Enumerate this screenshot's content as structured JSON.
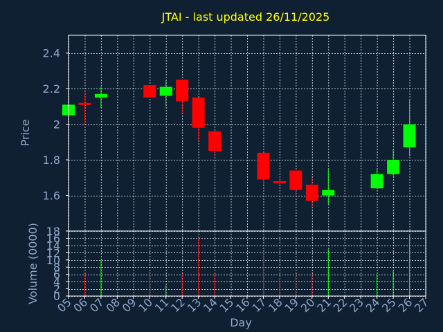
{
  "chart_data": {
    "type": "candlestick",
    "title": "JTAI - last updated 26/11/2025",
    "xlabel": "Day",
    "price_panel": {
      "ylabel": "Price",
      "ylim": [
        1.4,
        2.5
      ],
      "yticks": [
        1.6,
        1.8,
        2,
        2.2,
        2.4
      ],
      "ytick_labels": [
        "1.6",
        "1.8",
        "2",
        "2.2",
        "2.4"
      ]
    },
    "volume_panel": {
      "ylabel": "Volume (0000)",
      "ylim": [
        0,
        18
      ],
      "yticks": [
        0,
        2,
        4,
        6,
        8,
        10,
        12,
        14,
        16,
        18
      ],
      "ytick_labels": [
        "0",
        "2",
        "4",
        "6",
        "8",
        "10",
        "12",
        "14",
        "16",
        "18"
      ]
    },
    "x_ticks": [
      "05",
      "06",
      "07",
      "08",
      "09",
      "10",
      "11",
      "12",
      "13",
      "14",
      "15",
      "16",
      "17",
      "18",
      "19",
      "20",
      "21",
      "22",
      "23",
      "24",
      "25",
      "26",
      "27"
    ],
    "xlim": [
      5,
      27
    ],
    "grid": true,
    "colors": {
      "up": "#00ff00",
      "down": "#ff0000",
      "background": "#0f2033",
      "title": "#ffff00",
      "text": "#8fa8c8"
    },
    "candles": [
      {
        "day": 5,
        "open": 2.05,
        "high": 2.11,
        "low": 2.05,
        "close": 2.11,
        "volume": 3
      },
      {
        "day": 6,
        "open": 2.12,
        "high": 2.17,
        "low": 2.0,
        "close": 2.11,
        "volume": 6
      },
      {
        "day": 7,
        "open": 2.15,
        "high": 2.21,
        "low": 2.09,
        "close": 2.17,
        "volume": 10
      },
      {
        "day": 10,
        "open": 2.22,
        "high": 2.22,
        "low": 2.15,
        "close": 2.15,
        "volume": 7
      },
      {
        "day": 11,
        "open": 2.16,
        "high": 2.25,
        "low": 2.1,
        "close": 2.21,
        "volume": 3
      },
      {
        "day": 12,
        "open": 2.25,
        "high": 2.25,
        "low": 2.06,
        "close": 2.13,
        "volume": 6
      },
      {
        "day": 13,
        "open": 2.15,
        "high": 2.15,
        "low": 1.91,
        "close": 1.98,
        "volume": 16
      },
      {
        "day": 14,
        "open": 1.96,
        "high": 1.96,
        "low": 1.82,
        "close": 1.85,
        "volume": 6
      },
      {
        "day": 17,
        "open": 1.84,
        "high": 1.84,
        "low": 1.66,
        "close": 1.69,
        "volume": 12
      },
      {
        "day": 18,
        "open": 1.68,
        "high": 1.68,
        "low": 1.66,
        "close": 1.67,
        "volume": 5
      },
      {
        "day": 19,
        "open": 1.74,
        "high": 1.74,
        "low": 1.6,
        "close": 1.63,
        "volume": 6
      },
      {
        "day": 20,
        "open": 1.66,
        "high": 1.7,
        "low": 1.53,
        "close": 1.57,
        "volume": 6
      },
      {
        "day": 21,
        "open": 1.6,
        "high": 1.75,
        "low": 1.55,
        "close": 1.63,
        "volume": 13
      },
      {
        "day": 24,
        "open": 1.64,
        "high": 1.75,
        "low": 1.64,
        "close": 1.72,
        "volume": 6
      },
      {
        "day": 25,
        "open": 1.72,
        "high": 1.86,
        "low": 1.71,
        "close": 1.8,
        "volume": 7
      },
      {
        "day": 26,
        "open": 1.87,
        "high": 2.14,
        "low": 1.82,
        "close": 2.0,
        "volume": 17
      }
    ]
  }
}
